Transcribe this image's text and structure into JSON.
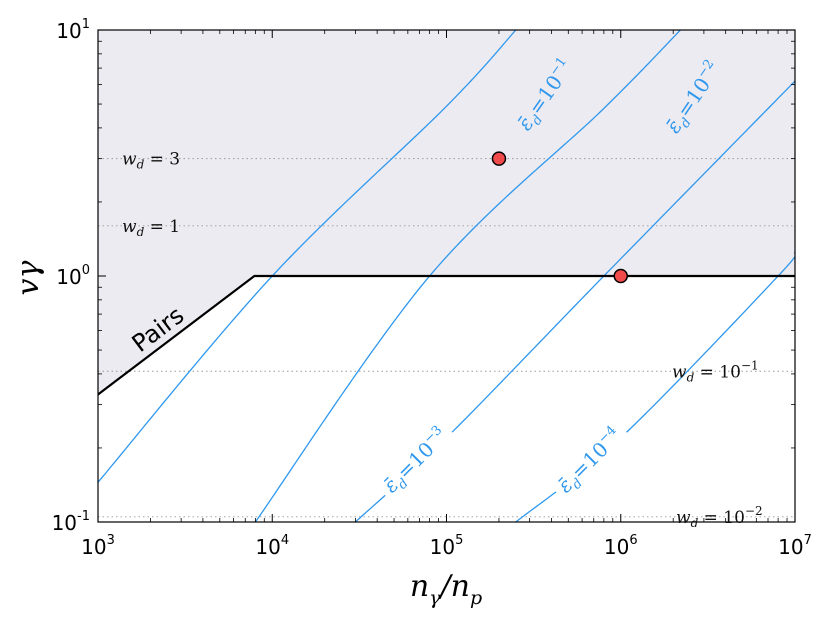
{
  "chart_data": {
    "type": "line",
    "xscale": "log",
    "yscale": "log",
    "xlim": [
      1000,
      10000000
    ],
    "ylim": [
      0.1,
      10
    ],
    "x_ticks": [
      {
        "base": "10",
        "exp": "3",
        "value": 1000
      },
      {
        "base": "10",
        "exp": "4",
        "value": 10000
      },
      {
        "base": "10",
        "exp": "5",
        "value": 100000
      },
      {
        "base": "10",
        "exp": "6",
        "value": 1000000
      },
      {
        "base": "10",
        "exp": "7",
        "value": 10000000
      }
    ],
    "y_ticks": [
      {
        "base": "10",
        "exp": "-1",
        "value": 0.1
      },
      {
        "base": "10",
        "exp": "0",
        "value": 1
      },
      {
        "base": "10",
        "exp": "1",
        "value": 10
      }
    ],
    "xlabel": {
      "main": "n",
      "sub1": "γ",
      "slash": "/n",
      "sub2": "p"
    },
    "ylabel": "vγ",
    "shaded_region": {
      "color": "#ecebf1"
    },
    "pairs_boundary": {
      "color": "#000000",
      "points": [
        [
          1000,
          0.33
        ],
        [
          7900,
          1.0
        ],
        [
          10000000,
          1.0
        ]
      ],
      "label": "Pairs"
    },
    "wd_lines": [
      {
        "y": 3,
        "prefix": "w",
        "sub": "d",
        "eq": " = ",
        "val": "3",
        "valexp": ""
      },
      {
        "y": 1.6,
        "prefix": "w",
        "sub": "d",
        "eq": " = ",
        "val": "1",
        "valexp": ""
      },
      {
        "y": 0.41,
        "prefix": "w",
        "sub": "d",
        "eq": " = ",
        "val": "10",
        "valexp": "−1"
      },
      {
        "y": 0.105,
        "prefix": "w",
        "sub": "d",
        "eq": " = ",
        "val": "10",
        "valexp": "−2"
      }
    ],
    "eps_curves": [
      {
        "color": "#2f98ee",
        "label_base": "10",
        "label_exp": "−1",
        "points": [
          [
            1000,
            0.145
          ],
          [
            10000,
            1.0
          ],
          [
            100000,
            4.9
          ],
          [
            250000,
            10
          ]
        ],
        "label_at": [
          5.6,
          0.72
        ],
        "label_angle": -55
      },
      {
        "color": "#2f98ee",
        "label_base": "10",
        "label_exp": "−2",
        "points": [
          [
            8000,
            0.1
          ],
          [
            80000,
            1.0
          ],
          [
            800000,
            4.8
          ],
          [
            2200000,
            10
          ]
        ],
        "label_at": [
          6.45,
          0.71
        ],
        "label_angle": -56
      },
      {
        "color": "#2f98ee",
        "label_base": "10",
        "label_exp": "−3",
        "points": [
          [
            30000,
            0.1
          ],
          [
            100000,
            0.22
          ],
          [
            800000,
            1.0
          ],
          [
            10000000,
            6.2
          ]
        ],
        "label_at": [
          4.85,
          -0.77
        ],
        "label_angle": -45
      },
      {
        "color": "#2f98ee",
        "label_base": "10",
        "label_exp": "−4",
        "points": [
          [
            250000,
            0.1
          ],
          [
            1000000,
            0.22
          ],
          [
            8000000,
            1.0
          ],
          [
            10000000,
            1.25
          ]
        ],
        "label_at": [
          5.85,
          -0.77
        ],
        "label_angle": -45
      }
    ],
    "points": [
      {
        "x": 200000,
        "y": 3.0,
        "color": "#f04a4a"
      },
      {
        "x": 1000000,
        "y": 1.0,
        "color": "#f04a4a"
      }
    ]
  }
}
